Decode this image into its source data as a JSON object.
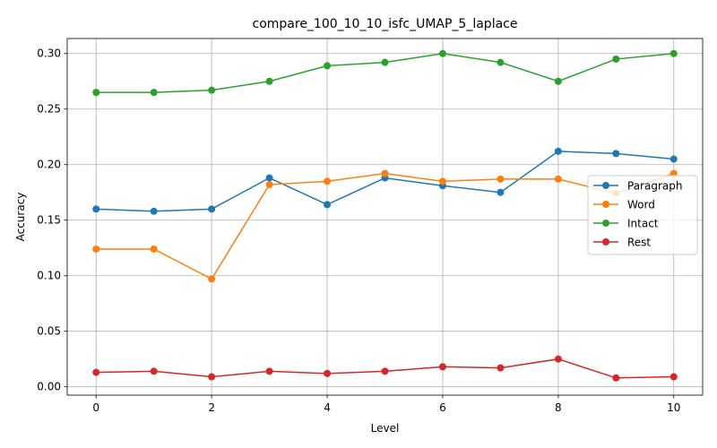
{
  "chart_data": {
    "type": "line",
    "title": "compare_100_10_10_isfc_UMAP_5_laplace",
    "xlabel": "Level",
    "ylabel": "Accuracy",
    "x": [
      0,
      1,
      2,
      3,
      4,
      5,
      6,
      7,
      8,
      9,
      10
    ],
    "xlim": [
      -0.5,
      10.5
    ],
    "ylim": [
      -0.0075,
      0.3135
    ],
    "xticks": [
      0,
      2,
      4,
      6,
      8,
      10
    ],
    "xtick_labels": [
      "0",
      "2",
      "4",
      "6",
      "8",
      "10"
    ],
    "yticks": [
      0.0,
      0.05,
      0.1,
      0.15,
      0.2,
      0.25,
      0.3
    ],
    "ytick_labels": [
      "0.00",
      "0.05",
      "0.10",
      "0.15",
      "0.20",
      "0.25",
      "0.30"
    ],
    "grid": true,
    "legend_position": "center-right",
    "series": [
      {
        "name": "Paragraph",
        "color": "#1f77b4",
        "values": [
          0.16,
          0.158,
          0.16,
          0.188,
          0.164,
          0.188,
          0.181,
          0.175,
          0.212,
          0.21,
          0.205
        ]
      },
      {
        "name": "Word",
        "color": "#ff7f0e",
        "values": [
          0.124,
          0.124,
          0.097,
          0.182,
          0.185,
          0.192,
          0.185,
          0.187,
          0.187,
          0.174,
          0.192
        ]
      },
      {
        "name": "Intact",
        "color": "#2ca02c",
        "values": [
          0.265,
          0.265,
          0.267,
          0.275,
          0.289,
          0.292,
          0.3,
          0.292,
          0.275,
          0.295,
          0.3
        ]
      },
      {
        "name": "Rest",
        "color": "#d62728",
        "values": [
          0.013,
          0.014,
          0.009,
          0.014,
          0.012,
          0.014,
          0.018,
          0.017,
          0.025,
          0.008,
          0.009
        ]
      }
    ]
  }
}
